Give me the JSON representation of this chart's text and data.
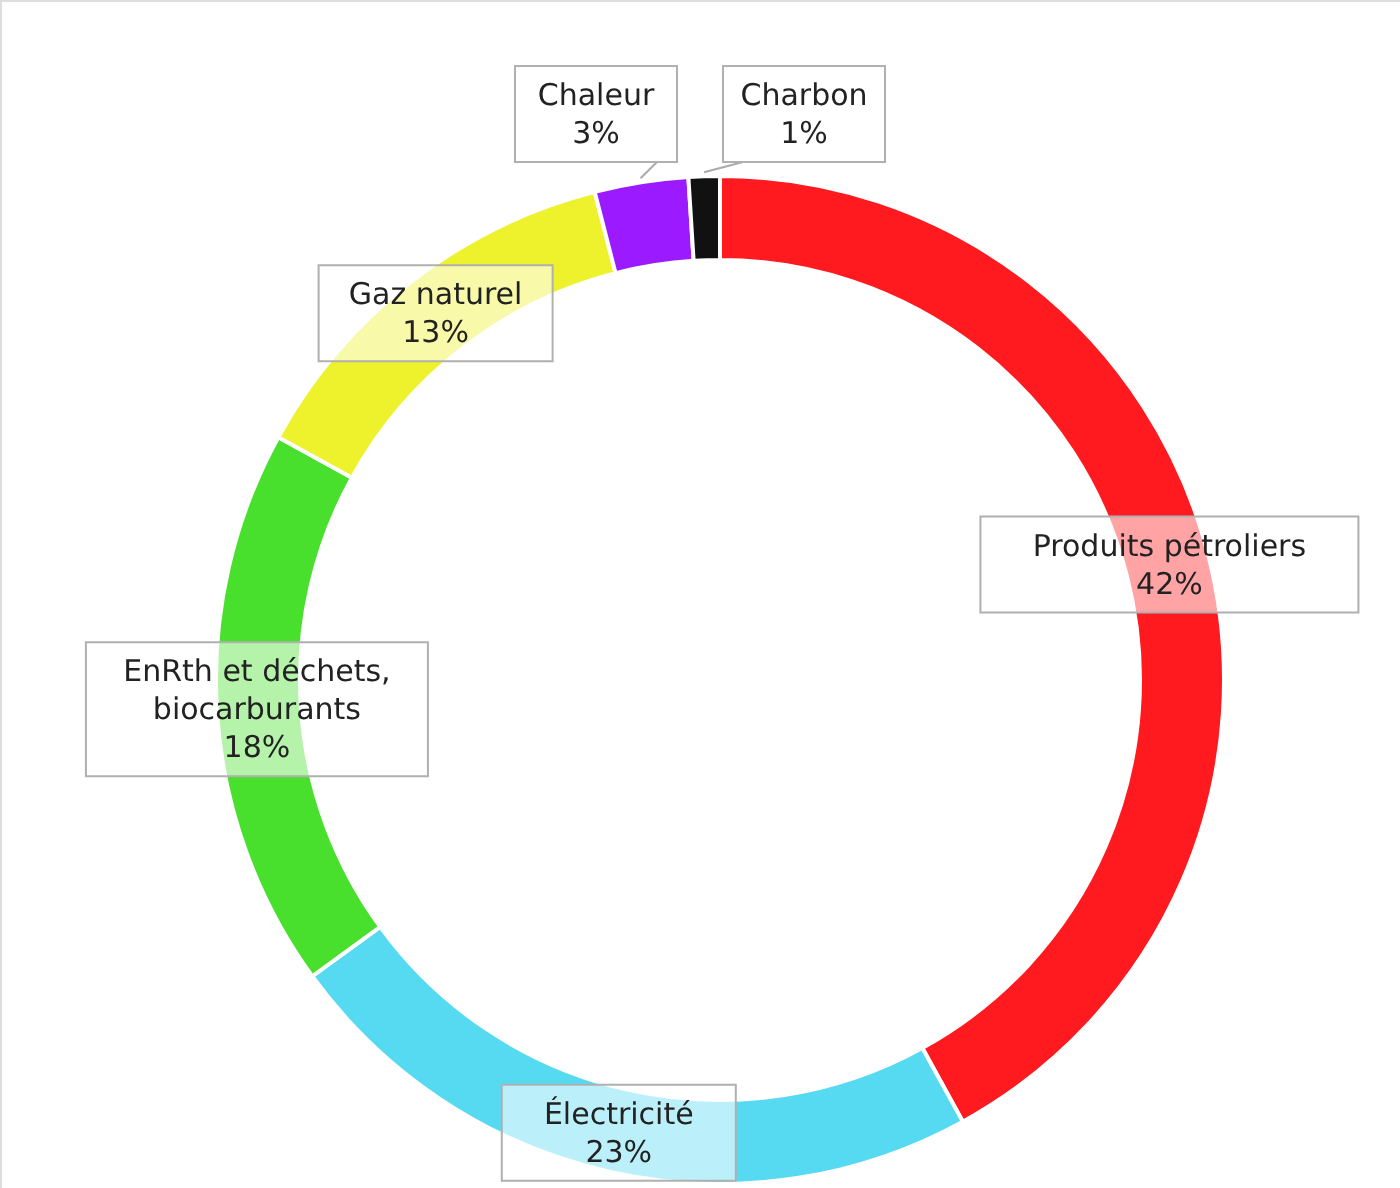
{
  "chart_data": {
    "type": "donut",
    "categories": [
      "Produits pétroliers",
      "Électricité",
      "EnRth et déchets, biocarburants",
      "Gaz naturel",
      "Chaleur",
      "Charbon"
    ],
    "values": [
      42,
      23,
      18,
      13,
      3,
      1
    ],
    "value_labels": [
      "42%",
      "23%",
      "18%",
      "13%",
      "3%",
      "1%"
    ],
    "colors": [
      "#ff1a1f",
      "#55daf2",
      "#48e02c",
      "#eef22c",
      "#9b1aff",
      "#111111"
    ]
  }
}
